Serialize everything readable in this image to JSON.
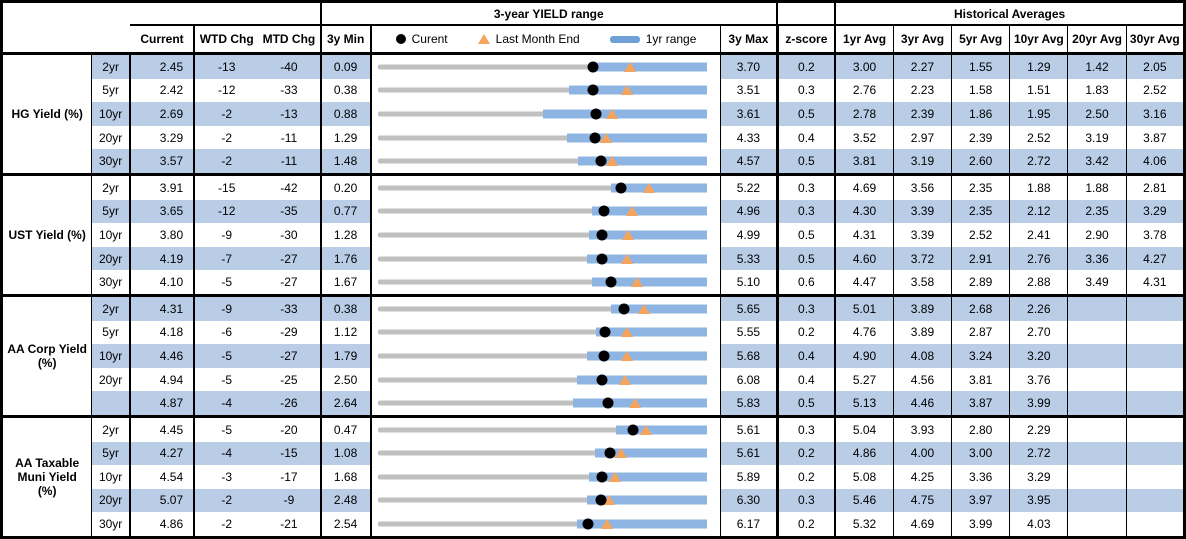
{
  "header": {
    "range_title": "3-year YIELD range",
    "historical_title": "Historical Averages",
    "columns": {
      "current": "Current",
      "wtd_chg": "WTD Chg",
      "mtd_chg": "MTD Chg",
      "min_3y": "3y Min",
      "max_3y": "3y Max",
      "z_score": "z-score"
    },
    "avg_columns": [
      "1yr Avg",
      "3yr Avg",
      "5yr Avg",
      "10yr Avg",
      "20yr Avg",
      "30yr Avg"
    ],
    "legend": {
      "current": "Curent",
      "last_month_end": "Last Month End",
      "range_1yr": "1yr range"
    }
  },
  "colors": {
    "row_band": "#B9CDE7",
    "bar_1yr_range": "#8DB4E2",
    "track_3yr_range": "#C0C0C0",
    "marker_current": "#000000",
    "marker_last_month_end": "#F6A45B"
  },
  "sections": [
    {
      "label": "HG Yield (%)",
      "rows": [
        {
          "tenor": "2yr",
          "current": "2.45",
          "wtd": "-13",
          "mtd": "-40",
          "min3y": "0.09",
          "max3y": "3.70",
          "z": "0.2",
          "avgs": [
            "3.00",
            "2.27",
            "1.55",
            "1.29",
            "1.42",
            "2.05"
          ]
        },
        {
          "tenor": "5yr",
          "current": "2.42",
          "wtd": "-12",
          "mtd": "-33",
          "min3y": "0.38",
          "max3y": "3.51",
          "z": "0.3",
          "avgs": [
            "2.76",
            "2.23",
            "1.58",
            "1.51",
            "1.83",
            "2.52"
          ]
        },
        {
          "tenor": "10yr",
          "current": "2.69",
          "wtd": "-2",
          "mtd": "-13",
          "min3y": "0.88",
          "max3y": "3.61",
          "z": "0.5",
          "avgs": [
            "2.78",
            "2.39",
            "1.86",
            "1.95",
            "2.50",
            "3.16"
          ]
        },
        {
          "tenor": "20yr",
          "current": "3.29",
          "wtd": "-2",
          "mtd": "-11",
          "min3y": "1.29",
          "max3y": "4.33",
          "z": "0.4",
          "avgs": [
            "3.52",
            "2.97",
            "2.39",
            "2.52",
            "3.19",
            "3.87"
          ]
        },
        {
          "tenor": "30yr",
          "current": "3.57",
          "wtd": "-2",
          "mtd": "-11",
          "min3y": "1.48",
          "max3y": "4.57",
          "z": "0.5",
          "avgs": [
            "3.81",
            "3.19",
            "2.60",
            "2.72",
            "3.42",
            "4.06"
          ]
        }
      ]
    },
    {
      "label": "UST Yield (%)",
      "rows": [
        {
          "tenor": "2yr",
          "current": "3.91",
          "wtd": "-15",
          "mtd": "-42",
          "min3y": "0.20",
          "max3y": "5.22",
          "z": "0.3",
          "avgs": [
            "4.69",
            "3.56",
            "2.35",
            "1.88",
            "1.88",
            "2.81"
          ]
        },
        {
          "tenor": "5yr",
          "current": "3.65",
          "wtd": "-12",
          "mtd": "-35",
          "min3y": "0.77",
          "max3y": "4.96",
          "z": "0.3",
          "avgs": [
            "4.30",
            "3.39",
            "2.35",
            "2.12",
            "2.35",
            "3.29"
          ]
        },
        {
          "tenor": "10yr",
          "current": "3.80",
          "wtd": "-9",
          "mtd": "-30",
          "min3y": "1.28",
          "max3y": "4.99",
          "z": "0.5",
          "avgs": [
            "4.31",
            "3.39",
            "2.52",
            "2.41",
            "2.90",
            "3.78"
          ]
        },
        {
          "tenor": "20yr",
          "current": "4.19",
          "wtd": "-7",
          "mtd": "-27",
          "min3y": "1.76",
          "max3y": "5.33",
          "z": "0.5",
          "avgs": [
            "4.60",
            "3.72",
            "2.91",
            "2.76",
            "3.36",
            "4.27"
          ]
        },
        {
          "tenor": "30yr",
          "current": "4.10",
          "wtd": "-5",
          "mtd": "-27",
          "min3y": "1.67",
          "max3y": "5.10",
          "z": "0.6",
          "avgs": [
            "4.47",
            "3.58",
            "2.89",
            "2.88",
            "3.49",
            "4.31"
          ]
        }
      ]
    },
    {
      "label": "AA Corp Yield\n(%)",
      "rows": [
        {
          "tenor": "2yr",
          "current": "4.31",
          "wtd": "-9",
          "mtd": "-33",
          "min3y": "0.38",
          "max3y": "5.65",
          "z": "0.3",
          "avgs": [
            "5.01",
            "3.89",
            "2.68",
            "2.26",
            "",
            ""
          ]
        },
        {
          "tenor": "5yr",
          "current": "4.18",
          "wtd": "-6",
          "mtd": "-29",
          "min3y": "1.12",
          "max3y": "5.55",
          "z": "0.2",
          "avgs": [
            "4.76",
            "3.89",
            "2.87",
            "2.70",
            "",
            ""
          ]
        },
        {
          "tenor": "10yr",
          "current": "4.46",
          "wtd": "-5",
          "mtd": "-27",
          "min3y": "1.79",
          "max3y": "5.68",
          "z": "0.4",
          "avgs": [
            "4.90",
            "4.08",
            "3.24",
            "3.20",
            "",
            ""
          ]
        },
        {
          "tenor": "20yr",
          "current": "4.94",
          "wtd": "-5",
          "mtd": "-25",
          "min3y": "2.50",
          "max3y": "6.08",
          "z": "0.4",
          "avgs": [
            "5.27",
            "4.56",
            "3.81",
            "3.76",
            "",
            ""
          ]
        },
        {
          "tenor": "",
          "current": "4.87",
          "wtd": "-4",
          "mtd": "-26",
          "min3y": "2.64",
          "max3y": "5.83",
          "z": "0.5",
          "avgs": [
            "5.13",
            "4.46",
            "3.87",
            "3.99",
            "",
            ""
          ]
        }
      ]
    },
    {
      "label": "AA Taxable\nMuni Yield\n(%)",
      "rows": [
        {
          "tenor": "2yr",
          "current": "4.45",
          "wtd": "-5",
          "mtd": "-20",
          "min3y": "0.47",
          "max3y": "5.61",
          "z": "0.3",
          "avgs": [
            "5.04",
            "3.93",
            "2.80",
            "2.29",
            "",
            ""
          ]
        },
        {
          "tenor": "5yr",
          "current": "4.27",
          "wtd": "-4",
          "mtd": "-15",
          "min3y": "1.08",
          "max3y": "5.61",
          "z": "0.2",
          "avgs": [
            "4.86",
            "4.00",
            "3.00",
            "2.72",
            "",
            ""
          ]
        },
        {
          "tenor": "10yr",
          "current": "4.54",
          "wtd": "-3",
          "mtd": "-17",
          "min3y": "1.68",
          "max3y": "5.89",
          "z": "0.2",
          "avgs": [
            "5.08",
            "4.25",
            "3.36",
            "3.29",
            "",
            ""
          ]
        },
        {
          "tenor": "20yr",
          "current": "5.07",
          "wtd": "-2",
          "mtd": "-9",
          "min3y": "2.48",
          "max3y": "6.30",
          "z": "0.3",
          "avgs": [
            "5.46",
            "4.75",
            "3.97",
            "3.95",
            "",
            ""
          ]
        },
        {
          "tenor": "30yr",
          "current": "4.86",
          "wtd": "-2",
          "mtd": "-21",
          "min3y": "2.54",
          "max3y": "6.17",
          "z": "0.2",
          "avgs": [
            "5.32",
            "4.69",
            "3.99",
            "4.03",
            "",
            ""
          ]
        }
      ]
    }
  ],
  "chart_data": {
    "type": "range-bar",
    "title": "3-year YIELD range",
    "legend": [
      "Curent",
      "Last Month End",
      "1yr range"
    ],
    "rows": [
      {
        "series": "HG Yield (%)",
        "tenor": "2yr",
        "min_3y": 0.09,
        "max_3y": 3.7,
        "low_1y": 2.41,
        "high_1y": 3.7,
        "current": 2.45,
        "last_month_end": 2.85
      },
      {
        "series": "HG Yield (%)",
        "tenor": "5yr",
        "min_3y": 0.38,
        "max_3y": 3.51,
        "low_1y": 2.2,
        "high_1y": 3.51,
        "current": 2.42,
        "last_month_end": 2.75
      },
      {
        "series": "HG Yield (%)",
        "tenor": "10yr",
        "min_3y": 0.88,
        "max_3y": 3.61,
        "low_1y": 2.25,
        "high_1y": 3.61,
        "current": 2.69,
        "last_month_end": 2.82
      },
      {
        "series": "HG Yield (%)",
        "tenor": "20yr",
        "min_3y": 1.29,
        "max_3y": 4.33,
        "low_1y": 3.04,
        "high_1y": 4.33,
        "current": 3.29,
        "last_month_end": 3.4
      },
      {
        "series": "HG Yield (%)",
        "tenor": "30yr",
        "min_3y": 1.48,
        "max_3y": 4.57,
        "low_1y": 3.36,
        "high_1y": 4.57,
        "current": 3.57,
        "last_month_end": 3.68
      },
      {
        "series": "UST Yield (%)",
        "tenor": "2yr",
        "min_3y": 0.2,
        "max_3y": 5.22,
        "low_1y": 3.75,
        "high_1y": 5.22,
        "current": 3.91,
        "last_month_end": 4.33
      },
      {
        "series": "UST Yield (%)",
        "tenor": "5yr",
        "min_3y": 0.77,
        "max_3y": 4.96,
        "low_1y": 3.5,
        "high_1y": 4.96,
        "current": 3.65,
        "last_month_end": 4.0
      },
      {
        "series": "UST Yield (%)",
        "tenor": "10yr",
        "min_3y": 1.28,
        "max_3y": 4.99,
        "low_1y": 3.66,
        "high_1y": 4.99,
        "current": 3.8,
        "last_month_end": 4.1
      },
      {
        "series": "UST Yield (%)",
        "tenor": "20yr",
        "min_3y": 1.76,
        "max_3y": 5.33,
        "low_1y": 4.03,
        "high_1y": 5.33,
        "current": 4.19,
        "last_month_end": 4.46
      },
      {
        "series": "UST Yield (%)",
        "tenor": "30yr",
        "min_3y": 1.67,
        "max_3y": 5.1,
        "low_1y": 3.9,
        "high_1y": 5.1,
        "current": 4.1,
        "last_month_end": 4.37
      },
      {
        "series": "AA Corp Yield (%)",
        "tenor": "2yr",
        "min_3y": 0.38,
        "max_3y": 5.65,
        "low_1y": 4.11,
        "high_1y": 5.65,
        "current": 4.31,
        "last_month_end": 4.64
      },
      {
        "series": "AA Corp Yield (%)",
        "tenor": "5yr",
        "min_3y": 1.12,
        "max_3y": 5.55,
        "low_1y": 4.06,
        "high_1y": 5.55,
        "current": 4.18,
        "last_month_end": 4.47
      },
      {
        "series": "AA Corp Yield (%)",
        "tenor": "10yr",
        "min_3y": 1.79,
        "max_3y": 5.68,
        "low_1y": 4.26,
        "high_1y": 5.68,
        "current": 4.46,
        "last_month_end": 4.73
      },
      {
        "series": "AA Corp Yield (%)",
        "tenor": "20yr",
        "min_3y": 2.5,
        "max_3y": 6.08,
        "low_1y": 4.66,
        "high_1y": 6.08,
        "current": 4.94,
        "last_month_end": 5.19
      },
      {
        "series": "AA Corp Yield (%)",
        "tenor": "30yr",
        "min_3y": 2.64,
        "max_3y": 5.83,
        "low_1y": 4.53,
        "high_1y": 5.83,
        "current": 4.87,
        "last_month_end": 5.13
      },
      {
        "series": "AA Taxable Muni Yield (%)",
        "tenor": "2yr",
        "min_3y": 0.47,
        "max_3y": 5.61,
        "low_1y": 4.18,
        "high_1y": 5.61,
        "current": 4.45,
        "last_month_end": 4.65
      },
      {
        "series": "AA Taxable Muni Yield (%)",
        "tenor": "5yr",
        "min_3y": 1.08,
        "max_3y": 5.61,
        "low_1y": 4.06,
        "high_1y": 5.61,
        "current": 4.27,
        "last_month_end": 4.42
      },
      {
        "series": "AA Taxable Muni Yield (%)",
        "tenor": "10yr",
        "min_3y": 1.68,
        "max_3y": 5.89,
        "low_1y": 4.38,
        "high_1y": 5.89,
        "current": 4.54,
        "last_month_end": 4.71
      },
      {
        "series": "AA Taxable Muni Yield (%)",
        "tenor": "20yr",
        "min_3y": 2.48,
        "max_3y": 6.3,
        "low_1y": 4.9,
        "high_1y": 6.3,
        "current": 5.07,
        "last_month_end": 5.16
      },
      {
        "series": "AA Taxable Muni Yield (%)",
        "tenor": "30yr",
        "min_3y": 2.54,
        "max_3y": 6.17,
        "low_1y": 4.73,
        "high_1y": 6.17,
        "current": 4.86,
        "last_month_end": 5.07
      }
    ]
  }
}
